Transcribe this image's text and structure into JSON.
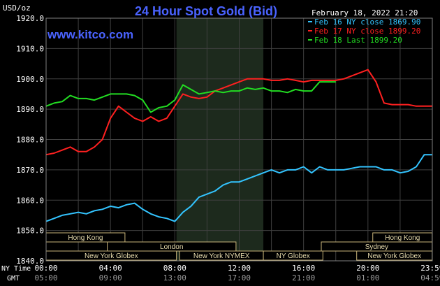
{
  "colors": {
    "background": "#000000",
    "plot_area": "#000000",
    "grid": "#404040",
    "axis_text": "#ffffff",
    "title": "#4a63ff",
    "site": "#4a63ff",
    "highlight_band": "#1d2a1d",
    "session_box_border": "#c8b47a",
    "session_box_text": "#e8dcae",
    "series_feb16": "#33c4ff",
    "series_feb17": "#ff2020",
    "series_feb18": "#22dd22"
  },
  "header": {
    "title": "24 Hour Spot Gold (Bid)",
    "site": "www.kitco.com",
    "date_time": "February 18, 2022 21:20",
    "unit": "USD/oz"
  },
  "legend": [
    {
      "label": "Feb 16 NY close 1869.90",
      "color_key": "series_feb16"
    },
    {
      "label": "Feb 17 NY close 1899.20",
      "color_key": "series_feb17"
    },
    {
      "label": "Feb 18 Last 1899.20",
      "color_key": "series_feb18"
    }
  ],
  "axis": {
    "y_ticks": [
      "1920.0",
      "1910.0",
      "1900.0",
      "1890.0",
      "1880.0",
      "1870.0",
      "1860.0",
      "1850.0",
      "1840.0"
    ],
    "ny_time_label": "NY Time",
    "gmt_label": "GMT",
    "ny_time_ticks": [
      "00:00",
      "04:00",
      "08:00",
      "12:00",
      "16:00",
      "20:00",
      "23:59"
    ],
    "gmt_ticks": [
      "05:00",
      "09:00",
      "13:00",
      "17:00",
      "21:00",
      "01:00",
      "04:59"
    ]
  },
  "sessions": [
    {
      "label": "Hong Kong",
      "start_hour": 0,
      "end_hour": 4.9,
      "row": 0
    },
    {
      "label": "Hong Kong",
      "start_hour": 20.3,
      "end_hour": 23.99,
      "row": 0
    },
    {
      "label": "London",
      "start_hour": 3.8,
      "end_hour": 11.8,
      "row": 1
    },
    {
      "label": "Sydney",
      "start_hour": 17.1,
      "end_hour": 23.99,
      "row": 1
    },
    {
      "label": "New York Globex",
      "start_hour": 0,
      "end_hour": 8.1,
      "row": 2
    },
    {
      "label": "New York NYMEX",
      "start_hour": 8.3,
      "end_hour": 13.5,
      "row": 2
    },
    {
      "label": "NY Globex",
      "start_hour": 13.5,
      "end_hour": 17.2,
      "row": 2
    },
    {
      "label": "New York Globex",
      "start_hour": 19.3,
      "end_hour": 23.99,
      "row": 2
    }
  ],
  "chart_data": {
    "type": "line",
    "title": "24 Hour Spot Gold (Bid)",
    "ylabel": "USD/oz",
    "ylim": [
      1840,
      1920
    ],
    "xlim": [
      0,
      24
    ],
    "grid": true,
    "legend_position": "top-right",
    "highlight_band_hours": [
      8.1,
      13.5
    ],
    "series": [
      {
        "name": "Feb 16 NY close 1869.90",
        "color_key": "series_feb16",
        "x": [
          0,
          0.5,
          1,
          1.5,
          2,
          2.5,
          3,
          3.5,
          4,
          4.5,
          5,
          5.5,
          6,
          6.5,
          7,
          7.5,
          8,
          8.5,
          9,
          9.5,
          10,
          10.5,
          11,
          11.5,
          12,
          12.5,
          13,
          13.5,
          14,
          14.5,
          15,
          15.5,
          16,
          16.5,
          17,
          17.5,
          18,
          18.5,
          19,
          19.5,
          20,
          20.5,
          21,
          21.5,
          22,
          22.5,
          23,
          23.5,
          23.99
        ],
        "y": [
          1853,
          1854,
          1855,
          1855.5,
          1856,
          1855.5,
          1856.5,
          1857,
          1858,
          1857.5,
          1858.5,
          1859,
          1857,
          1855.5,
          1854.5,
          1854,
          1853,
          1856,
          1858,
          1861,
          1862,
          1863,
          1865,
          1866,
          1866,
          1867,
          1868,
          1869,
          1870,
          1869,
          1870,
          1870,
          1871,
          1869,
          1871,
          1870,
          1870,
          1870,
          1870.5,
          1871,
          1871,
          1871,
          1870,
          1870,
          1869,
          1869.5,
          1871,
          1875,
          1875
        ]
      },
      {
        "name": "Feb 17 NY close 1899.20",
        "color_key": "series_feb17",
        "x": [
          0,
          0.5,
          1,
          1.5,
          2,
          2.5,
          3,
          3.5,
          4,
          4.5,
          5,
          5.5,
          6,
          6.5,
          7,
          7.5,
          8,
          8.5,
          9,
          9.5,
          10,
          10.5,
          11,
          11.5,
          12,
          12.5,
          13,
          13.5,
          14,
          14.5,
          15,
          15.5,
          16,
          16.5,
          17,
          17.5,
          18,
          18.5,
          19,
          19.5,
          20,
          20.5,
          21,
          21.5,
          22,
          22.5,
          23,
          23.5,
          23.99
        ],
        "y": [
          1875,
          1875.5,
          1876.5,
          1877.5,
          1876,
          1876,
          1877.5,
          1880,
          1887,
          1891,
          1889,
          1887,
          1886,
          1887.5,
          1886,
          1887,
          1891,
          1895,
          1894,
          1893.5,
          1894,
          1896,
          1897,
          1898,
          1899,
          1900,
          1900,
          1900,
          1899.5,
          1899.5,
          1900,
          1899.5,
          1899,
          1899.5,
          1899.5,
          1899.5,
          1899.5,
          1900,
          1901,
          1902,
          1903,
          1899,
          1892,
          1891.5,
          1891.5,
          1891.5,
          1891,
          1891,
          1891
        ]
      },
      {
        "name": "Feb 18 Last 1899.20",
        "color_key": "series_feb18",
        "x": [
          0,
          0.5,
          1,
          1.5,
          2,
          2.5,
          3,
          3.5,
          4,
          4.5,
          5,
          5.5,
          6,
          6.5,
          7,
          7.5,
          8,
          8.5,
          9,
          9.5,
          10,
          10.5,
          11,
          11.5,
          12,
          12.5,
          13,
          13.5,
          14,
          14.5,
          15,
          15.5,
          16,
          16.5,
          17,
          17.5,
          18
        ],
        "y": [
          1891,
          1892,
          1892.5,
          1894.5,
          1893.5,
          1893.5,
          1893,
          1894,
          1895,
          1895,
          1895,
          1894.5,
          1893,
          1889,
          1890.5,
          1891,
          1893,
          1898,
          1896.5,
          1895,
          1895.5,
          1896,
          1895.5,
          1896,
          1896,
          1897,
          1896.5,
          1897,
          1896,
          1896,
          1895.5,
          1896.5,
          1896,
          1896,
          1899,
          1899,
          1899
        ]
      }
    ]
  }
}
